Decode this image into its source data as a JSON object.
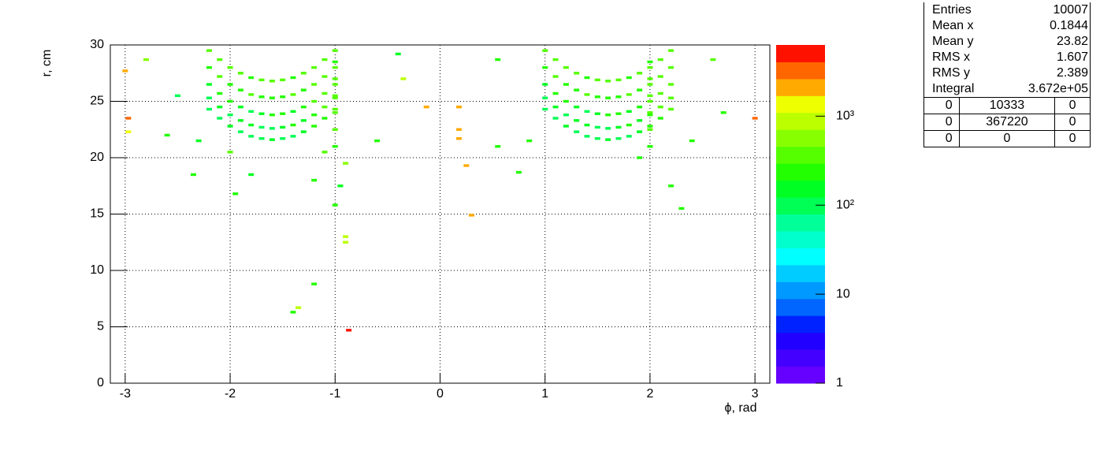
{
  "chart_data": {
    "type": "heatmap",
    "x_label": "ϕ, rad",
    "y_label": "r, cm",
    "xlim": [
      -3.1416,
      3.1416
    ],
    "ylim": [
      0,
      30
    ],
    "xticks": [
      -3,
      -2,
      -1,
      0,
      1,
      2,
      3
    ],
    "yticks": [
      0,
      5,
      10,
      15,
      20,
      25,
      30
    ],
    "grid": true,
    "zlim": [
      1,
      6310
    ],
    "zscale": "log",
    "zticks": [
      1,
      10,
      {
        "value": 100,
        "label": "10²"
      },
      {
        "value": 1000,
        "label": "10³"
      }
    ],
    "palette": [
      "#6600ff",
      "#4400ff",
      "#2200ff",
      "#0022ff",
      "#0066ff",
      "#0099ff",
      "#00ccff",
      "#00ffff",
      "#00ffcc",
      "#00ff99",
      "#00ff55",
      "#00ff22",
      "#22ff00",
      "#55ff00",
      "#88ff00",
      "#bbff00",
      "#eeff00",
      "#ffaa00",
      "#ff6600",
      "#ff1100"
    ],
    "x": [
      -2.2,
      -2.1,
      -2.0,
      -1.9,
      -1.8,
      -1.7,
      -1.6,
      -1.5,
      -1.4,
      -1.3,
      -1.2,
      -1.1,
      -1.0,
      -2.2,
      -2.1,
      -2.0,
      -1.9,
      -1.8,
      -1.7,
      -1.6,
      -1.5,
      -1.4,
      -1.3,
      -1.2,
      -1.1,
      -1.0,
      -2.2,
      -2.1,
      -2.0,
      -1.9,
      -1.8,
      -1.7,
      -1.6,
      -1.5,
      -1.4,
      -1.3,
      -1.2,
      -1.1,
      -1.0,
      -2.2,
      -2.1,
      -2.0,
      -1.9,
      -1.8,
      -1.7,
      -1.6,
      -1.5,
      -1.4,
      -1.3,
      -1.2,
      -1.1,
      -1.0,
      -2.2,
      -2.1,
      -2.0,
      -1.9,
      -1.8,
      -1.7,
      -1.6,
      -1.5,
      -1.4,
      -1.3,
      -1.2,
      -1.1,
      -1.0,
      1.0,
      1.1,
      1.2,
      1.3,
      1.4,
      1.5,
      1.6,
      1.7,
      1.8,
      1.9,
      2.0,
      2.1,
      2.2,
      1.0,
      1.1,
      1.2,
      1.3,
      1.4,
      1.5,
      1.6,
      1.7,
      1.8,
      1.9,
      2.0,
      2.1,
      2.2,
      1.0,
      1.1,
      1.2,
      1.3,
      1.4,
      1.5,
      1.6,
      1.7,
      1.8,
      1.9,
      2.0,
      2.1,
      2.2,
      1.0,
      1.1,
      1.2,
      1.3,
      1.4,
      1.5,
      1.6,
      1.7,
      1.8,
      1.9,
      2.0,
      2.1,
      2.2,
      1.0,
      1.1,
      1.2,
      1.3,
      1.4,
      1.5,
      1.6,
      1.7,
      1.8,
      1.9,
      2.0,
      2.1,
      2.2,
      -3.0,
      -2.97,
      -2.97,
      -2.8,
      -2.5,
      -2.3,
      -2.35,
      -1.95,
      -1.8,
      -1.2,
      -1.0,
      -0.95,
      -0.9,
      -0.9,
      -1.2,
      -1.35,
      -1.4,
      -0.87,
      -0.35,
      -0.4,
      -0.6,
      -0.13,
      0.18,
      0.18,
      0.18,
      0.25,
      0.3,
      0.55,
      0.55,
      0.75,
      0.85,
      2.2,
      2.3,
      2.6,
      2.7,
      2.4,
      3.0,
      -1.0,
      -1.0,
      -1.0,
      -1.0,
      -1.0,
      -1.0,
      2.0,
      2.0,
      2.0,
      2.0,
      2.0,
      2.0,
      -0.9,
      -1.1,
      1.9,
      -2.0,
      -2.6
    ],
    "y": [
      29.5,
      28.7,
      28.0,
      27.5,
      27.1,
      26.9,
      26.8,
      26.9,
      27.1,
      27.5,
      28.0,
      28.7,
      29.5,
      28.0,
      27.2,
      26.5,
      26.0,
      25.6,
      25.4,
      25.3,
      25.4,
      25.6,
      26.0,
      26.5,
      27.2,
      28.0,
      26.5,
      25.7,
      25.0,
      24.5,
      24.1,
      23.9,
      23.8,
      23.9,
      24.1,
      24.5,
      25.0,
      25.7,
      26.5,
      25.3,
      24.5,
      23.8,
      23.3,
      22.9,
      22.7,
      22.6,
      22.7,
      22.9,
      23.3,
      23.8,
      24.5,
      25.3,
      24.3,
      23.5,
      22.8,
      22.3,
      21.9,
      21.7,
      21.6,
      21.7,
      21.9,
      22.3,
      22.8,
      23.5,
      24.3,
      29.5,
      28.7,
      28.0,
      27.5,
      27.1,
      26.9,
      26.8,
      26.9,
      27.1,
      27.5,
      28.0,
      28.7,
      29.5,
      28.0,
      27.2,
      26.5,
      26.0,
      25.6,
      25.4,
      25.3,
      25.4,
      25.6,
      26.0,
      26.5,
      27.2,
      28.0,
      26.5,
      25.7,
      25.0,
      24.5,
      24.1,
      23.9,
      23.8,
      23.9,
      24.1,
      24.5,
      25.0,
      25.7,
      26.5,
      25.3,
      24.5,
      23.8,
      23.3,
      22.9,
      22.7,
      22.6,
      22.7,
      22.9,
      23.3,
      23.8,
      24.5,
      25.3,
      24.3,
      23.5,
      22.8,
      22.3,
      21.9,
      21.7,
      21.6,
      21.7,
      21.9,
      22.3,
      22.8,
      23.5,
      24.3,
      27.7,
      23.5,
      22.3,
      28.7,
      25.5,
      21.5,
      18.5,
      16.8,
      18.5,
      18.0,
      15.8,
      17.5,
      13.0,
      12.5,
      8.8,
      6.7,
      6.3,
      4.7,
      27.0,
      29.2,
      21.5,
      24.5,
      24.5,
      22.5,
      21.7,
      19.3,
      14.9,
      21.0,
      28.7,
      18.7,
      21.5,
      17.5,
      15.5,
      28.7,
      24.0,
      21.5,
      23.5,
      28.5,
      27.0,
      25.5,
      24.0,
      22.5,
      21.0,
      28.5,
      27.0,
      25.5,
      24.0,
      22.5,
      21.0,
      19.5,
      20.5,
      20.0,
      20.5,
      22.0
    ],
    "values": [
      300,
      350,
      400,
      300,
      250,
      300,
      350,
      300,
      250,
      300,
      350,
      400,
      300,
      250,
      300,
      200,
      250,
      300,
      250,
      200,
      250,
      300,
      250,
      350,
      300,
      400,
      150,
      200,
      250,
      180,
      120,
      150,
      200,
      250,
      180,
      220,
      300,
      350,
      400,
      120,
      150,
      100,
      180,
      150,
      120,
      100,
      150,
      200,
      180,
      250,
      300,
      350,
      100,
      120,
      150,
      100,
      80,
      120,
      150,
      100,
      120,
      180,
      200,
      250,
      300,
      300,
      350,
      400,
      300,
      250,
      300,
      350,
      300,
      250,
      300,
      350,
      400,
      300,
      250,
      300,
      200,
      250,
      300,
      250,
      200,
      250,
      300,
      250,
      350,
      300,
      400,
      150,
      200,
      250,
      180,
      120,
      150,
      200,
      250,
      180,
      220,
      300,
      350,
      400,
      120,
      150,
      100,
      180,
      150,
      120,
      100,
      150,
      200,
      180,
      250,
      300,
      350,
      100,
      120,
      150,
      100,
      80,
      120,
      150,
      100,
      120,
      180,
      200,
      250,
      300,
      2000,
      4000,
      1500,
      700,
      100,
      150,
      200,
      200,
      150,
      200,
      200,
      150,
      800,
      800,
      200,
      800,
      200,
      5000,
      800,
      150,
      200,
      2500,
      2500,
      2500,
      2500,
      2500,
      2500,
      200,
      200,
      200,
      200,
      200,
      200,
      300,
      200,
      200,
      4000,
      200,
      300,
      400,
      400,
      300,
      200,
      200,
      300,
      300,
      400,
      300,
      200,
      500,
      300,
      200,
      300,
      200
    ],
    "stats": {
      "rows": [
        [
          "Entries",
          "10007"
        ],
        [
          "Mean x",
          "0.1844"
        ],
        [
          "Mean y",
          "23.82"
        ],
        [
          "RMS x",
          "1.607"
        ],
        [
          "RMS y",
          "2.389"
        ],
        [
          "Integral",
          "3.672e+05"
        ]
      ],
      "grid": [
        [
          "0",
          "10333",
          "0"
        ],
        [
          "0",
          "367220",
          "0"
        ],
        [
          "0",
          "0",
          "0"
        ]
      ]
    }
  }
}
